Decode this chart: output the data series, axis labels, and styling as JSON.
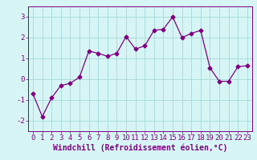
{
  "x": [
    0,
    1,
    2,
    3,
    4,
    5,
    6,
    7,
    8,
    9,
    10,
    11,
    12,
    13,
    14,
    15,
    16,
    17,
    18,
    19,
    20,
    21,
    22,
    23
  ],
  "y": [
    -0.7,
    -1.8,
    -0.9,
    -0.3,
    -0.2,
    0.1,
    1.35,
    1.25,
    1.1,
    1.25,
    2.05,
    1.45,
    1.6,
    2.35,
    2.4,
    3.0,
    2.0,
    2.2,
    2.35,
    0.55,
    -0.1,
    -0.1,
    0.6,
    0.65
  ],
  "line_color": "#800080",
  "marker": "D",
  "marker_size": 2.5,
  "bg_color": "#d8f5f5",
  "grid_color": "#aadddd",
  "xlabel": "Windchill (Refroidissement éolien,°C)",
  "xlabel_fontsize": 7,
  "tick_fontsize": 6.5,
  "ylim": [
    -2.5,
    3.5
  ],
  "xlim": [
    -0.5,
    23.5
  ],
  "yticks": [
    -2,
    -1,
    0,
    1,
    2,
    3
  ],
  "xticks": [
    0,
    1,
    2,
    3,
    4,
    5,
    6,
    7,
    8,
    9,
    10,
    11,
    12,
    13,
    14,
    15,
    16,
    17,
    18,
    19,
    20,
    21,
    22,
    23
  ]
}
